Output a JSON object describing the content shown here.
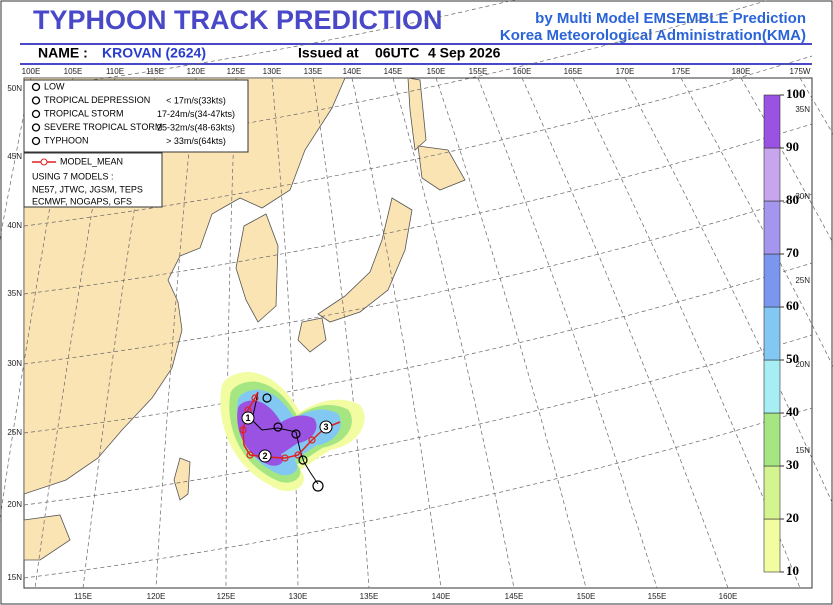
{
  "header": {
    "title": "TYPHOON  TRACK  PREDICTION",
    "subtitle_1": "by Multi Model EMSEMBLE Prediction",
    "subtitle_2": "Korea Meteorological Administration(KMA)",
    "name_label": "NAME :",
    "name_value": "KROVAN (2624)",
    "issued_label": "Issued at",
    "issued_time": "06UTC",
    "issued_date": "4 Sep 2026"
  },
  "map": {
    "top_labels": [
      "100E",
      "105E",
      "110E",
      "115E",
      "120E",
      "125E",
      "130E",
      "135E",
      "140E",
      "145E",
      "150E",
      "155E",
      "160E",
      "165E",
      "170E",
      "175E",
      "180E",
      "175W"
    ],
    "bottom_labels": [
      "115E",
      "120E",
      "125E",
      "130E",
      "135E",
      "140E",
      "145E",
      "150E",
      "155E",
      "160E"
    ],
    "left_labels": [
      "50N",
      "45N",
      "40N",
      "35N",
      "30N",
      "25N",
      "20N",
      "15N"
    ],
    "right_labels": [
      "35N",
      "30N",
      "25N",
      "20N",
      "15N"
    ]
  },
  "legend": {
    "classes": [
      "LOW",
      "TROPICAL DEPRESSION",
      "TROPICAL STORM",
      "SEVERE TROPICAL STORM",
      "TYPHOON"
    ],
    "speeds": [
      "< 17m/s(33kts)",
      "17-24m/s(34-47kts)",
      "25-32m/s(48-63kts)",
      "> 33m/s(64kts)"
    ],
    "mean_label": "MODEL_MEAN",
    "using": "USING 7 MODELS :",
    "models": [
      "NE57, JTWC, JGSM, TEPS",
      "ECMWF, NOGAPS, GFS"
    ]
  },
  "track": {
    "labels": [
      "1",
      "2",
      "3"
    ]
  },
  "colorbar": {
    "ticks": [
      10,
      20,
      30,
      40,
      50,
      60,
      70,
      80,
      90,
      100
    ],
    "colors": [
      "#f2fca0",
      "#d4f490",
      "#a6e682",
      "#a6eef4",
      "#82c8f2",
      "#7a96ee",
      "#a496ee",
      "#c8a6ee",
      "#9a52e2"
    ]
  }
}
